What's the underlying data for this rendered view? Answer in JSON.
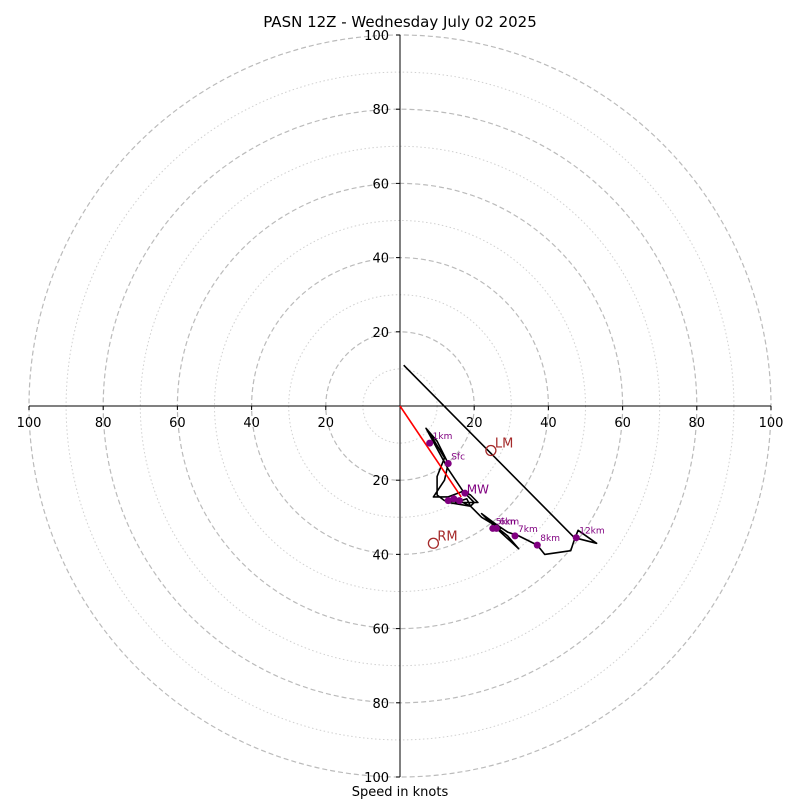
{
  "chart_data": {
    "type": "hodograph",
    "title": "PASN 12Z - Wednesday July 02 2025",
    "xlabel": "Speed in knots",
    "axis_range": [
      -100,
      100
    ],
    "tick_values": [
      -100,
      -80,
      -60,
      -40,
      -20,
      20,
      40,
      60,
      80,
      100
    ],
    "tick_labels": {
      "-100": "100",
      "-80": "80",
      "-60": "60",
      "-40": "40",
      "-20": "20",
      "20": "20",
      "40": "40",
      "60": "60",
      "80": "80",
      "100": "100"
    },
    "rings_dashed": [
      20,
      40,
      60,
      80,
      100
    ],
    "rings_dotted": [
      10,
      30,
      50,
      70,
      90
    ],
    "colors": {
      "trace": "#000000",
      "storm_vector": "#ff0000",
      "height_marker": "#800080",
      "storm_motion": "#a52a2a",
      "ring": "#bbbbbb"
    },
    "hodograph_trace": [
      [
        7.0,
        -6.0
      ],
      [
        10.0,
        -9.5
      ],
      [
        13.0,
        -15.5
      ],
      [
        12.0,
        -20.0
      ],
      [
        9.0,
        -24.5
      ],
      [
        13.0,
        -24.5
      ],
      [
        17.0,
        -23.0
      ],
      [
        19.0,
        -24.0
      ],
      [
        21.0,
        -26.0
      ],
      [
        15.0,
        -26.0
      ],
      [
        18.0,
        -25.0
      ],
      [
        19.0,
        -27.0
      ],
      [
        17.0,
        -26.0
      ],
      [
        12.0,
        -25.5
      ],
      [
        10.0,
        -24.0
      ],
      [
        10.0,
        -19.0
      ],
      [
        12.0,
        -14.0
      ],
      [
        9.0,
        -9.0
      ],
      [
        7.0,
        -6.0
      ],
      [
        13.0,
        -17.0
      ],
      [
        17.0,
        -23.0
      ],
      [
        20.0,
        -26.0
      ],
      [
        19.0,
        -27.0
      ],
      [
        13.0,
        -26.0
      ],
      [
        15.0,
        -25.0
      ],
      [
        19.0,
        -27.0
      ],
      [
        22.0,
        -30.0
      ],
      [
        27.0,
        -33.0
      ],
      [
        24.0,
        -31.0
      ],
      [
        29.0,
        -35.0
      ],
      [
        32.0,
        -38.5
      ],
      [
        26.0,
        -33.0
      ],
      [
        22.0,
        -29.0
      ],
      [
        26.0,
        -32.0
      ],
      [
        29.0,
        -34.0
      ],
      [
        32.0,
        -35.0
      ],
      [
        37.0,
        -37.5
      ],
      [
        39.0,
        -40.0
      ],
      [
        46.0,
        -39.0
      ],
      [
        47.0,
        -36.0
      ],
      [
        48.0,
        -33.5
      ],
      [
        53.0,
        -37.0
      ],
      [
        47.0,
        -35.5
      ],
      [
        1.0,
        11.0
      ]
    ],
    "height_markers": [
      {
        "label": "Sfc",
        "u": 13.0,
        "v": -15.5
      },
      {
        "label": "1km",
        "u": 8.0,
        "v": -10.0
      },
      {
        "label": "",
        "u": 13.0,
        "v": -25.5
      },
      {
        "label": "",
        "u": 14.5,
        "v": -25.0
      },
      {
        "label": "",
        "u": 16.0,
        "v": -25.5
      },
      {
        "label": "",
        "u": 17.5,
        "v": -23.5
      },
      {
        "label": "5km",
        "u": 25.0,
        "v": -33.0
      },
      {
        "label": "6km",
        "u": 26.0,
        "v": -33.0
      },
      {
        "label": "7km",
        "u": 31.0,
        "v": -35.0
      },
      {
        "label": "8km",
        "u": 37.0,
        "v": -37.5
      },
      {
        "label": "12km",
        "u": 47.5,
        "v": -35.5
      }
    ],
    "storm_vector": {
      "from": [
        0.0,
        0.0
      ],
      "to": [
        16.5,
        -24.5
      ]
    },
    "storm_motion_labels": [
      {
        "label": "LM",
        "u": 24.5,
        "v": -12.0
      },
      {
        "label": "RM",
        "u": 9.0,
        "v": -37.0
      },
      {
        "label": "MW",
        "u": 18.0,
        "v": -23.0
      }
    ]
  }
}
